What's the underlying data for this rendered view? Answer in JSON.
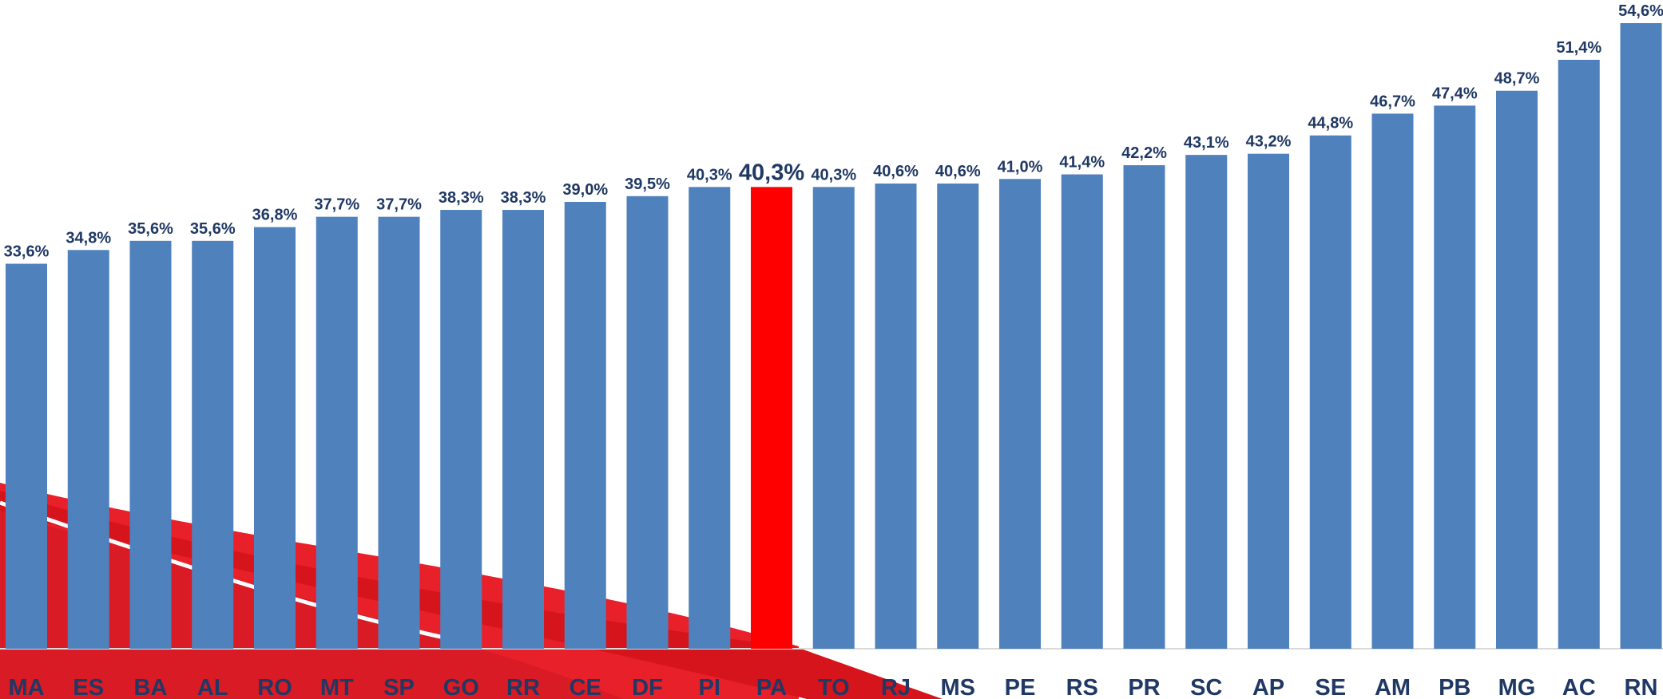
{
  "chart_data": {
    "type": "bar",
    "categories": [
      "MA",
      "ES",
      "BA",
      "AL",
      "RO",
      "MT",
      "SP",
      "GO",
      "RR",
      "CE",
      "DF",
      "PI",
      "PA",
      "TO",
      "RJ",
      "MS",
      "PE",
      "RS",
      "PR",
      "SC",
      "AP",
      "SE",
      "AM",
      "PB",
      "MG",
      "AC",
      "RN"
    ],
    "values": [
      33.6,
      34.8,
      35.6,
      35.6,
      36.8,
      37.7,
      37.7,
      38.3,
      38.3,
      39.0,
      39.5,
      40.3,
      40.3,
      40.3,
      40.6,
      40.6,
      41.0,
      41.4,
      42.2,
      43.1,
      43.2,
      44.8,
      46.7,
      47.4,
      48.7,
      51.4,
      54.6
    ],
    "value_labels": [
      "33,6%",
      "34,8%",
      "35,6%",
      "35,6%",
      "36,8%",
      "37,7%",
      "37,7%",
      "38,3%",
      "38,3%",
      "39,0%",
      "39,5%",
      "40,3%",
      "40,3%",
      "40,3%",
      "40,6%",
      "40,6%",
      "41,0%",
      "41,4%",
      "42,2%",
      "43,1%",
      "43,2%",
      "44,8%",
      "46,7%",
      "47,4%",
      "48,7%",
      "51,4%",
      "54,6%"
    ],
    "colors": [
      "#4f81bd",
      "#4f81bd",
      "#4f81bd",
      "#4f81bd",
      "#4f81bd",
      "#4f81bd",
      "#4f81bd",
      "#4f81bd",
      "#4f81bd",
      "#4f81bd",
      "#4f81bd",
      "#4f81bd",
      "#ff0000",
      "#4f81bd",
      "#4f81bd",
      "#4f81bd",
      "#4f81bd",
      "#4f81bd",
      "#4f81bd",
      "#4f81bd",
      "#4f81bd",
      "#4f81bd",
      "#4f81bd",
      "#4f81bd",
      "#4f81bd",
      "#4f81bd",
      "#4f81bd"
    ]
  }
}
